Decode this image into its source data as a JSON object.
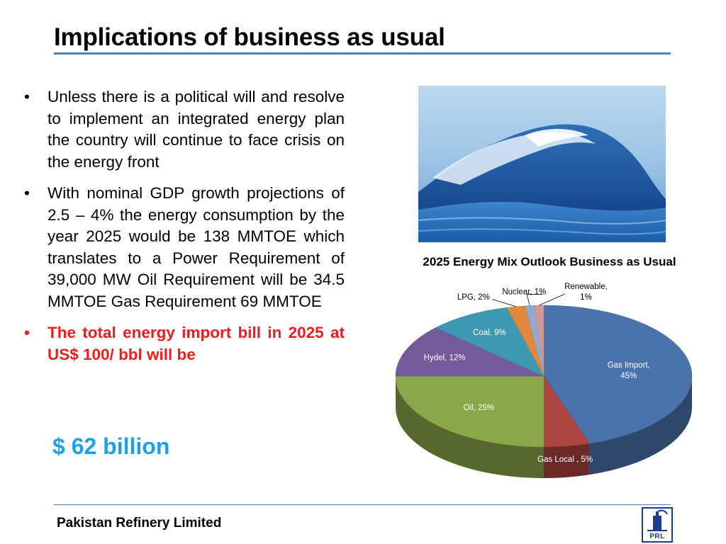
{
  "slide": {
    "title": "Implications of business as usual",
    "bullets": [
      "Unless there is a political will and resolve to implement an integrated energy plan the country will continue to face crisis on the energy front",
      "With nominal GDP growth projections of 2.5 – 4% the energy consumption by the year 2025 would be 138 MMTOE which translates to a Power Requirement of 39,000 MW Oil Requirement will be 34.5 MMTOE Gas Requirement 69 MMTOE",
      "The total energy import bill in 2025 at US$ 100/ bbl will be"
    ],
    "highlight": "$ 62 billion",
    "footer": "Pakistan Refinery Limited",
    "logo_text": "PRL",
    "colors": {
      "title_rule": "#4f81bd",
      "highlight_bullet": "#ee1c1c",
      "highlight_value": "#1e9fe8"
    }
  },
  "chart_data": {
    "type": "pie",
    "title": "2025 Energy Mix Outlook Business as Usual",
    "categories": [
      "Gas Import",
      "Gas Local",
      "Oil",
      "Hydel",
      "Coal",
      "LPG",
      "Nuclear",
      "Renewable"
    ],
    "values": [
      45,
      5,
      25,
      12,
      9,
      2,
      1,
      1
    ],
    "data_labels": [
      [
        "Gas Import,",
        "45%"
      ],
      [
        "Gas Local , 5%"
      ],
      [
        "Oil, 25%"
      ],
      [
        "Hydel, 12%"
      ],
      [
        "Coal, 9%"
      ],
      [
        "LPG, 2%"
      ],
      [
        "Nuclear, 1%"
      ],
      [
        "Renewable,",
        "1%"
      ]
    ],
    "colors": [
      "#4a73ac",
      "#ac4441",
      "#8aa84a",
      "#735a98",
      "#3e98b0",
      "#e0883c",
      "#93a9cf",
      "#d09896"
    ],
    "style": "3d"
  }
}
